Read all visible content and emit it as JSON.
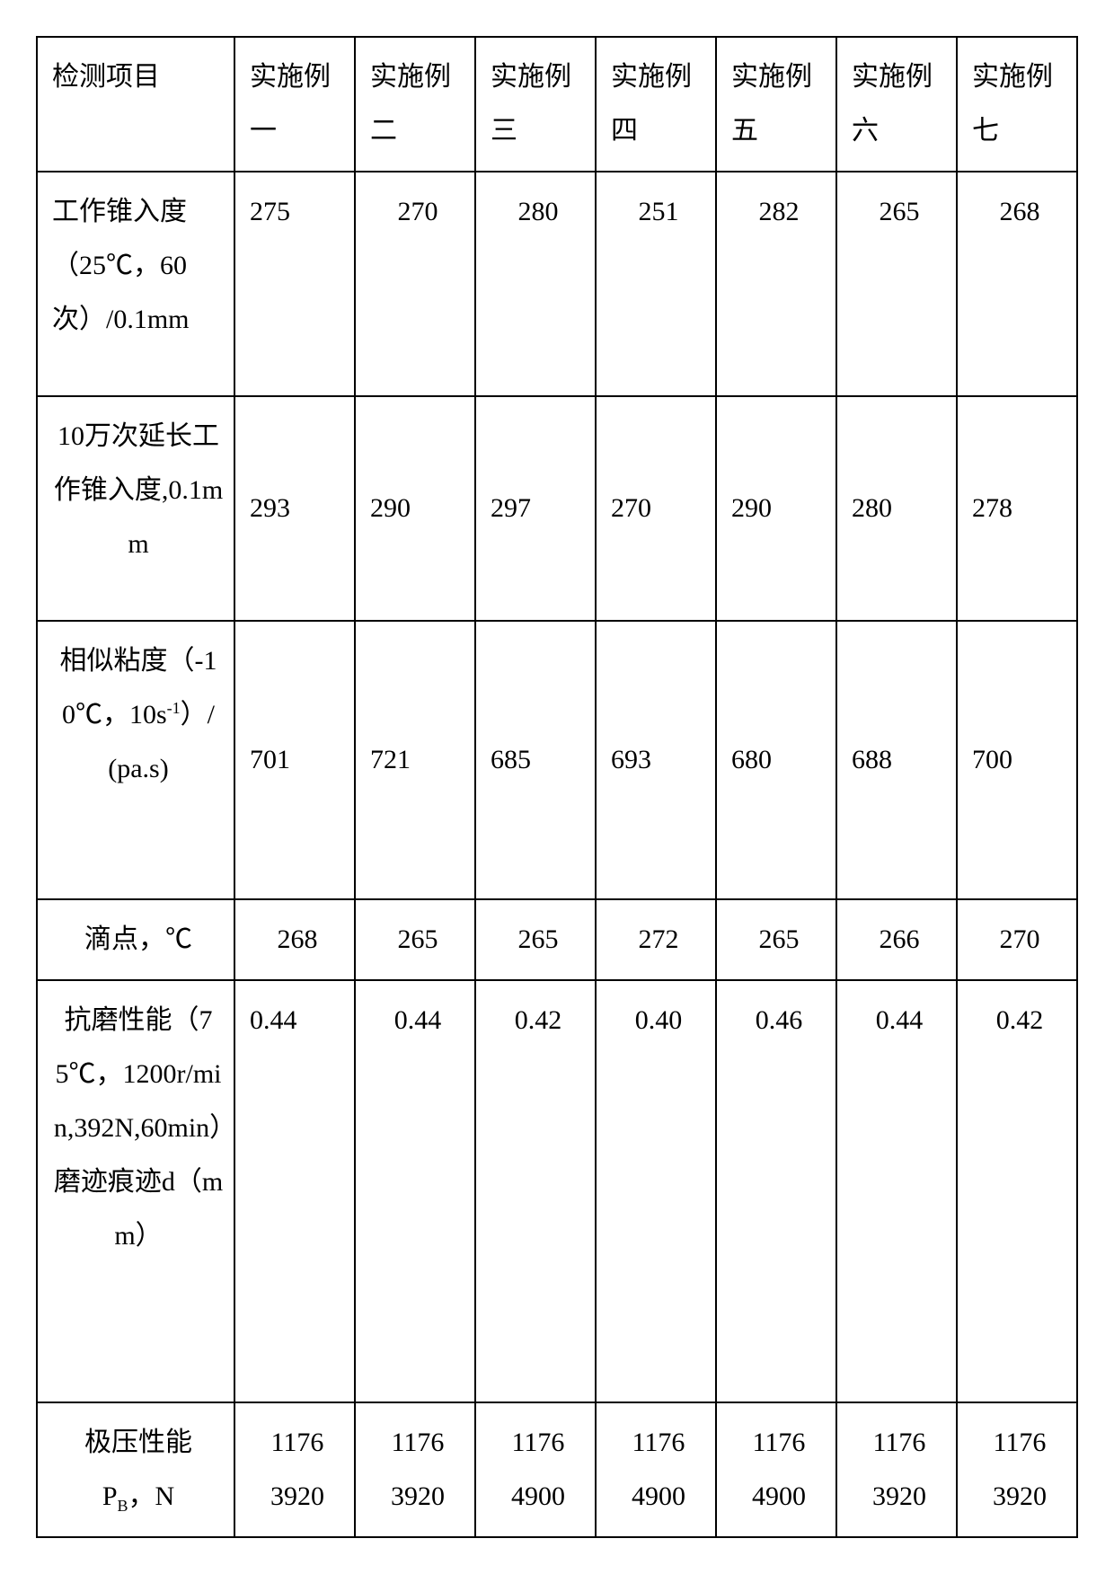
{
  "table": {
    "background_color": "#ffffff",
    "border_color": "#000000",
    "font_family": "SimSun",
    "header_fontsize": 30,
    "cell_fontsize": 30,
    "columns": [
      "检测项目",
      "实施例一",
      "实施例二",
      "实施例三",
      "实施例四",
      "实施例五",
      "实施例六",
      "实施例七"
    ],
    "rows": [
      {
        "label": "工作锥入度（25℃，60次）/0.1mm",
        "label_align": "left",
        "values": [
          "275",
          "270",
          "280",
          "251",
          "282",
          "265",
          "268"
        ],
        "value_align": [
          "left",
          "center",
          "center",
          "center",
          "center",
          "center",
          "center"
        ],
        "value_valign": "top"
      },
      {
        "label": "10万次延长工作锥入度,0.1mm",
        "label_align": "center",
        "values": [
          "293",
          "290",
          "297",
          "270",
          "290",
          "280",
          "278"
        ],
        "value_align": [
          "left",
          "left",
          "left",
          "left",
          "left",
          "left",
          "left"
        ],
        "value_valign": "middle"
      },
      {
        "label": "相似粘度（-10℃，10s⁻¹）/(pa.s)",
        "label_align": "center",
        "values": [
          "701",
          "721",
          "685",
          "693",
          "680",
          "688",
          "700"
        ],
        "value_align": [
          "left",
          "left",
          "left",
          "left",
          "left",
          "left",
          "left"
        ],
        "value_valign": "middle"
      },
      {
        "label": "滴点，℃",
        "label_align": "center",
        "values": [
          "268",
          "265",
          "265",
          "272",
          "265",
          "266",
          "270"
        ],
        "value_align": [
          "center",
          "center",
          "center",
          "center",
          "center",
          "center",
          "center"
        ],
        "value_valign": "middle"
      },
      {
        "label": "抗磨性能（75℃，1200r/min,392N,60min）磨迹痕迹d（mm）",
        "label_align": "center",
        "values": [
          "0.44",
          "0.44",
          "0.42",
          "0.40",
          "0.46",
          "0.44",
          "0.42"
        ],
        "value_align": [
          "left",
          "center",
          "center",
          "center",
          "center",
          "center",
          "center"
        ],
        "value_valign": "top"
      },
      {
        "label": "极压性能 P_B，N",
        "label_align": "center",
        "values_line1": [
          "1176",
          "1176",
          "1176",
          "1176",
          "1176",
          "1176",
          "1176"
        ],
        "values_line2": [
          "3920",
          "3920",
          "4900",
          "4900",
          "4900",
          "3920",
          "3920"
        ],
        "value_align": [
          "center",
          "center",
          "center",
          "center",
          "center",
          "center",
          "center"
        ],
        "value_valign": "top"
      }
    ]
  }
}
